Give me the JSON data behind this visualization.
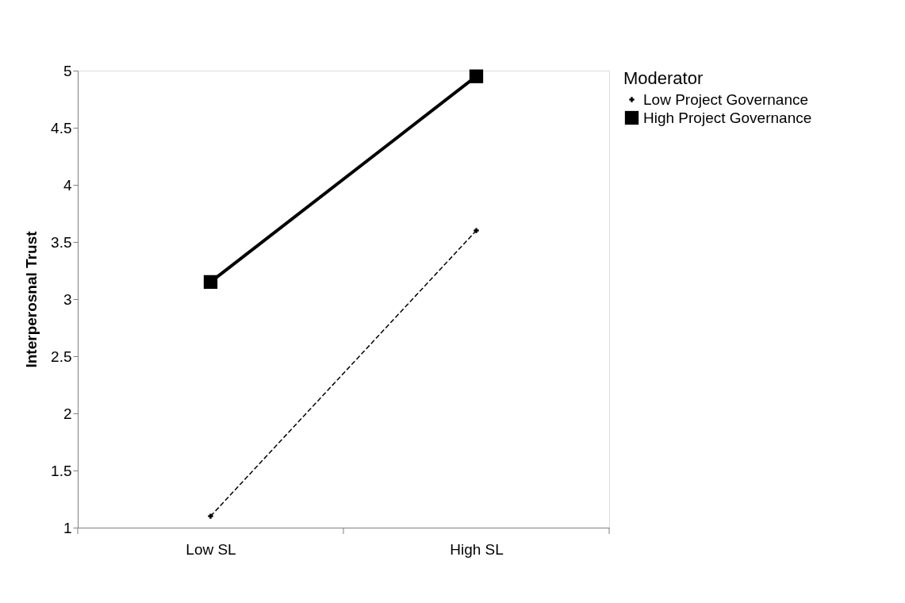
{
  "chart_data": {
    "type": "line",
    "ylabel": "Interperosnal Trust",
    "legend_title": "Moderator",
    "legend": "right",
    "categories": [
      "Low SL",
      "High SL"
    ],
    "ylim": [
      1,
      5
    ],
    "yticks": [
      1,
      1.5,
      2,
      2.5,
      3,
      3.5,
      4,
      4.5,
      5
    ],
    "grid": false,
    "series": [
      {
        "name": "Low Project Governance",
        "color": "#000000",
        "values": [
          1.1,
          3.6
        ],
        "marker": "cross",
        "line_style": "dashed"
      },
      {
        "name": "High Project Governance",
        "color": "#000000",
        "values": [
          3.15,
          4.95
        ],
        "marker": "square",
        "line_style": "solid"
      }
    ]
  }
}
